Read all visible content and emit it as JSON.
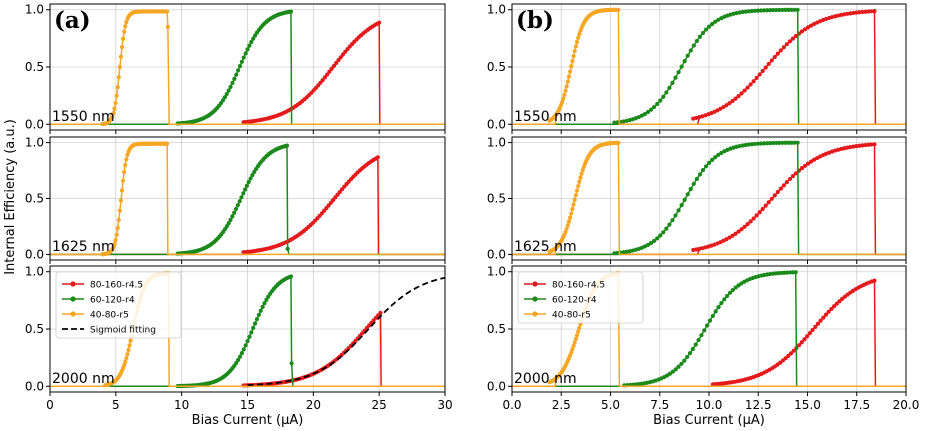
{
  "chart_data": {
    "type": "line",
    "ylabel": "Internal Efficiency (a.u.)",
    "legend_location": "upper-left",
    "columns": [
      {
        "panel_label": "(a)",
        "xlabel": "Bias Current (μA)",
        "xlim": [
          0,
          30
        ],
        "xticks": [
          0,
          5,
          10,
          15,
          20,
          25,
          30
        ],
        "xtick_labels": [
          "0",
          "5",
          "10",
          "15",
          "20",
          "25",
          "30"
        ],
        "rows": [
          {
            "wavelength": "1550 nm",
            "ylim": [
              -0.05,
              1.05
            ],
            "series": [
              {
                "name": "80-160-r4.5",
                "color": "#e41a1c",
                "center": 21.5,
                "scale": 1.7,
                "onset": 15,
                "max": 1.0,
                "switch": 25.0
              },
              {
                "name": "60-120-r4",
                "color": "#1a8a1a",
                "center": 14.4,
                "scale": 0.95,
                "onset": 10,
                "max": 1.0,
                "switch": 18.3
              },
              {
                "name": "40-80-r5",
                "color": "#f5a623",
                "center": 5.3,
                "scale": 0.22,
                "onset": 4.3,
                "max": 0.985,
                "switch": 8.9,
                "drop_to": 0.85
              }
            ]
          },
          {
            "wavelength": "1625 nm",
            "ylim": [
              -0.05,
              1.05
            ],
            "series": [
              {
                "name": "80-160-r4.5",
                "color": "#e41a1c",
                "center": 21.6,
                "scale": 1.75,
                "onset": 15,
                "max": 1.0,
                "switch": 24.9
              },
              {
                "name": "60-120-r4",
                "color": "#1a8a1a",
                "center": 14.5,
                "scale": 0.98,
                "onset": 10,
                "max": 1.0,
                "switch": 18.0,
                "drop_to": 0.05
              },
              {
                "name": "40-80-r5",
                "color": "#f5a623",
                "center": 5.4,
                "scale": 0.22,
                "onset": 4.3,
                "max": 0.99,
                "switch": 8.9
              }
            ]
          },
          {
            "wavelength": "2000 nm",
            "ylim": [
              -0.05,
              1.05
            ],
            "series": [
              {
                "name": "80-160-r4.5",
                "color": "#e41a1c",
                "center": 24.0,
                "scale": 1.9,
                "onset": 15,
                "max": 1.0,
                "switch": 25.1
              },
              {
                "name": "60-120-r4",
                "color": "#1a8a1a",
                "center": 15.4,
                "scale": 0.92,
                "onset": 10,
                "max": 1.0,
                "switch": 18.3,
                "drop_to": 0.2
              },
              {
                "name": "40-80-r5",
                "color": "#f5a623",
                "center": 6.3,
                "scale": 0.45,
                "onset": 4.5,
                "max": 0.99,
                "switch": 9.0
              }
            ],
            "fit": {
              "name": "Sigmoid fitting",
              "color": "#000000",
              "center": 24.2,
              "scale": 2.0,
              "start": 15.0,
              "end": 30.0
            }
          }
        ]
      },
      {
        "panel_label": "(b)",
        "xlabel": "Bias Current (μA)",
        "xlim": [
          0,
          20
        ],
        "xticks": [
          0,
          2.5,
          5,
          7.5,
          10,
          12.5,
          15,
          17.5,
          20
        ],
        "xtick_labels": [
          "0.0",
          "2.5",
          "5.0",
          "7.5",
          "10.0",
          "12.5",
          "15.0",
          "17.5",
          "20.0"
        ],
        "rows": [
          {
            "wavelength": "1550 nm",
            "ylim": [
              -0.05,
              1.05
            ],
            "series": [
              {
                "name": "80-160-r4.5",
                "color": "#e41a1c",
                "center": 12.9,
                "scale": 1.25,
                "onset": 9.5,
                "max": 1.0,
                "switch": 18.4
              },
              {
                "name": "60-120-r4",
                "color": "#1a8a1a",
                "center": 8.6,
                "scale": 0.8,
                "onset": 5.5,
                "max": 1.0,
                "switch": 14.5
              },
              {
                "name": "40-80-r5",
                "color": "#f5a623",
                "center": 3.0,
                "scale": 0.32,
                "onset": 2.2,
                "max": 1.0,
                "switch": 5.4
              }
            ]
          },
          {
            "wavelength": "1625 nm",
            "ylim": [
              -0.05,
              1.05
            ],
            "series": [
              {
                "name": "80-160-r4.5",
                "color": "#e41a1c",
                "center": 13.2,
                "scale": 1.25,
                "onset": 9.5,
                "max": 1.0,
                "switch": 18.4
              },
              {
                "name": "60-120-r4",
                "color": "#1a8a1a",
                "center": 8.8,
                "scale": 0.8,
                "onset": 5.5,
                "max": 1.0,
                "switch": 14.5
              },
              {
                "name": "40-80-r5",
                "color": "#f5a623",
                "center": 3.2,
                "scale": 0.35,
                "onset": 2.2,
                "max": 1.0,
                "switch": 5.4
              }
            ]
          },
          {
            "wavelength": "2000 nm",
            "ylim": [
              -0.05,
              1.05
            ],
            "series": [
              {
                "name": "80-160-r4.5",
                "color": "#e41a1c",
                "center": 15.3,
                "scale": 1.25,
                "onset": 10.5,
                "max": 1.0,
                "switch": 18.4
              },
              {
                "name": "60-120-r4",
                "color": "#1a8a1a",
                "center": 9.8,
                "scale": 0.85,
                "onset": 6.0,
                "max": 1.0,
                "switch": 14.4
              },
              {
                "name": "40-80-r5",
                "color": "#f5a623",
                "center": 3.4,
                "scale": 0.45,
                "onset": 2.2,
                "max": 1.0,
                "switch": 5.4
              }
            ]
          }
        ]
      }
    ],
    "yticks": [
      0,
      0.5,
      1
    ],
    "ytick_labels": [
      "0.0",
      "0.5",
      "1.0"
    ],
    "legend": [
      {
        "name": "80-160-r4.5",
        "color": "#e41a1c",
        "style": "line-marker"
      },
      {
        "name": "60-120-r4",
        "color": "#1a8a1a",
        "style": "line-marker"
      },
      {
        "name": "40-80-r5",
        "color": "#f5a623",
        "style": "line-marker"
      },
      {
        "name": "Sigmoid fitting",
        "color": "#000000",
        "style": "dashed"
      }
    ]
  }
}
